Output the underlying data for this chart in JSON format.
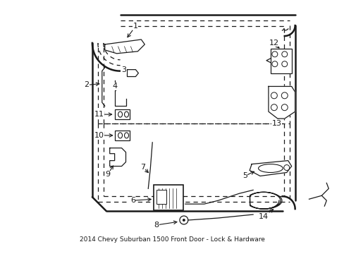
{
  "bg_color": "#ffffff",
  "line_color": "#1a1a1a",
  "title": "2014 Chevy Suburban 1500 Front Door - Lock & Hardware",
  "title_fontsize": 6.5,
  "part_fontsize": 8
}
